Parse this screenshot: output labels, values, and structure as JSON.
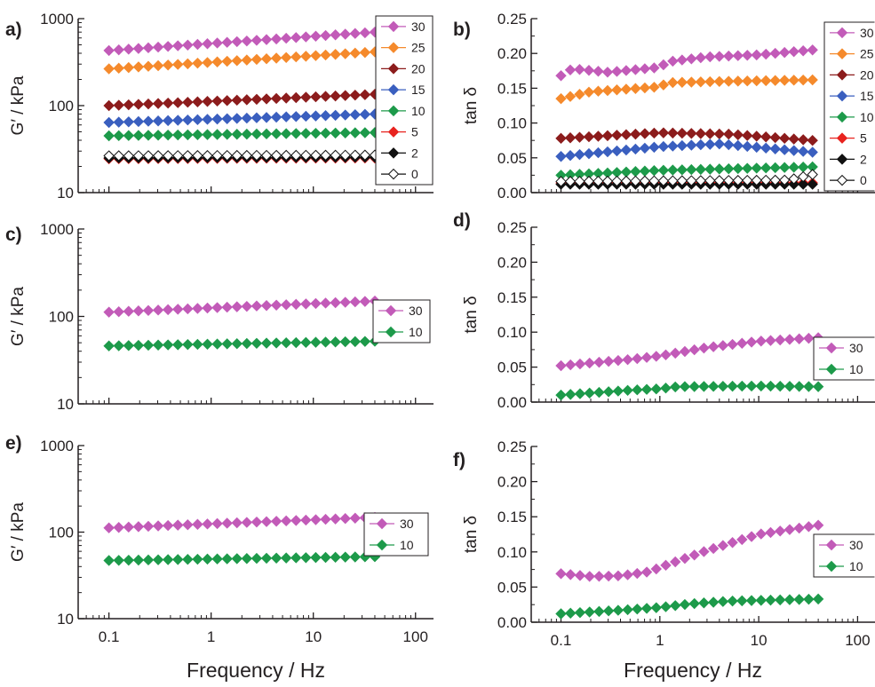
{
  "xlabel": "Frequency / Hz",
  "chart_data": [
    {
      "panel": "a)",
      "type": "scatter",
      "ylabel": "G′ / kPa",
      "yscale": "log",
      "ylim": [
        10,
        1000
      ],
      "yticks": [
        "10",
        "100",
        "1000"
      ],
      "xscale": "log",
      "xlim": [
        0.05,
        150
      ],
      "xticks": [],
      "legend_position": "right",
      "series": [
        {
          "name": "30",
          "color": "#c25bb8",
          "marker": "diamond",
          "x_range": [
            0.1,
            40
          ],
          "y_start": 430,
          "y_end": 700
        },
        {
          "name": "25",
          "color": "#f58a2c",
          "marker": "diamond",
          "x_range": [
            0.1,
            40
          ],
          "y_start": 265,
          "y_end": 415
        },
        {
          "name": "20",
          "color": "#8c1c1c",
          "marker": "diamond",
          "x_range": [
            0.1,
            40
          ],
          "y_start": 100,
          "y_end": 135
        },
        {
          "name": "15",
          "color": "#3a5fbf",
          "marker": "diamond",
          "x_range": [
            0.1,
            40
          ],
          "y_start": 64,
          "y_end": 80
        },
        {
          "name": "10",
          "color": "#1d9a4a",
          "marker": "diamond",
          "x_range": [
            0.1,
            40
          ],
          "y_start": 45,
          "y_end": 49
        },
        {
          "name": "5",
          "color": "#e8231f",
          "marker": "diamond",
          "x_range": [
            0.1,
            40
          ],
          "y_start": 24.5,
          "y_end": 25
        },
        {
          "name": "2",
          "color": "#111111",
          "marker": "diamond",
          "x_range": [
            0.1,
            40
          ],
          "y_start": 25,
          "y_end": 25.5
        },
        {
          "name": "0",
          "color": "#ffffff",
          "marker": "diamond-open",
          "x_range": [
            0.1,
            40
          ],
          "y_start": 26.5,
          "y_end": 27
        }
      ]
    },
    {
      "panel": "b)",
      "type": "scatter",
      "ylabel": "tan δ",
      "yscale": "linear",
      "ylim": [
        0,
        0.25
      ],
      "yticks": [
        "0.00",
        "0.05",
        "0.10",
        "0.15",
        "0.20",
        "0.25"
      ],
      "xscale": "log",
      "xlim": [
        0.05,
        150
      ],
      "xticks": [],
      "legend_position": "right",
      "series": [
        {
          "name": "30",
          "color": "#c25bb8",
          "marker": "diamond",
          "x_range": [
            0.1,
            35
          ],
          "points": [
            [
              0.1,
              0.168
            ],
            [
              0.13,
              0.178
            ],
            [
              0.3,
              0.173
            ],
            [
              1,
              0.18
            ],
            [
              1.2,
              0.188
            ],
            [
              3,
              0.195
            ],
            [
              10,
              0.198
            ],
            [
              35,
              0.205
            ]
          ]
        },
        {
          "name": "25",
          "color": "#f58a2c",
          "marker": "diamond",
          "x_range": [
            0.1,
            35
          ],
          "points": [
            [
              0.1,
              0.135
            ],
            [
              0.2,
              0.145
            ],
            [
              1,
              0.152
            ],
            [
              1.2,
              0.158
            ],
            [
              5,
              0.16
            ],
            [
              35,
              0.162
            ]
          ]
        },
        {
          "name": "20",
          "color": "#8c1c1c",
          "marker": "diamond",
          "x_range": [
            0.1,
            35
          ],
          "points": [
            [
              0.1,
              0.078
            ],
            [
              1,
              0.086
            ],
            [
              5,
              0.084
            ],
            [
              35,
              0.075
            ]
          ]
        },
        {
          "name": "15",
          "color": "#3a5fbf",
          "marker": "diamond",
          "x_range": [
            0.1,
            35
          ],
          "points": [
            [
              0.1,
              0.052
            ],
            [
              1,
              0.066
            ],
            [
              4,
              0.07
            ],
            [
              35,
              0.058
            ]
          ]
        },
        {
          "name": "10",
          "color": "#1d9a4a",
          "marker": "diamond",
          "x_range": [
            0.1,
            35
          ],
          "points": [
            [
              0.1,
              0.025
            ],
            [
              1,
              0.032
            ],
            [
              35,
              0.037
            ]
          ]
        },
        {
          "name": "5",
          "color": "#e8231f",
          "marker": "diamond",
          "x_range": [
            0.1,
            35
          ],
          "points": [
            [
              0.1,
              0.014
            ],
            [
              35,
              0.014
            ]
          ]
        },
        {
          "name": "2",
          "color": "#111111",
          "marker": "diamond",
          "x_range": [
            0.1,
            35
          ],
          "points": [
            [
              0.1,
              0.012
            ],
            [
              35,
              0.012
            ]
          ]
        },
        {
          "name": "0",
          "color": "#ffffff",
          "marker": "diamond-open",
          "x_range": [
            0.1,
            35
          ],
          "points": [
            [
              0.1,
              0.016
            ],
            [
              20,
              0.018
            ],
            [
              35,
              0.026
            ]
          ]
        }
      ]
    },
    {
      "panel": "c)",
      "type": "scatter",
      "ylabel": "G′ / kPa",
      "yscale": "log",
      "ylim": [
        10,
        1000
      ],
      "yticks": [
        "10",
        "100",
        "1000"
      ],
      "xscale": "log",
      "xlim": [
        0.05,
        150
      ],
      "xticks": [],
      "legend_position": "right",
      "series": [
        {
          "name": "30",
          "color": "#c25bb8",
          "marker": "diamond",
          "x_range": [
            0.1,
            40
          ],
          "y_start": 112,
          "y_end": 150
        },
        {
          "name": "10",
          "color": "#1d9a4a",
          "marker": "diamond",
          "x_range": [
            0.1,
            40
          ],
          "y_start": 46,
          "y_end": 52
        }
      ]
    },
    {
      "panel": "d)",
      "type": "scatter",
      "ylabel": "tan δ",
      "yscale": "linear",
      "ylim": [
        0,
        0.25
      ],
      "yticks": [
        "0.00",
        "0.05",
        "0.10",
        "0.15",
        "0.20",
        "0.25"
      ],
      "xscale": "log",
      "xlim": [
        0.05,
        150
      ],
      "xticks": [],
      "legend_position": "right",
      "series": [
        {
          "name": "30",
          "color": "#c25bb8",
          "marker": "diamond",
          "x_range": [
            0.1,
            40
          ],
          "points": [
            [
              0.1,
              0.052
            ],
            [
              0.5,
              0.061
            ],
            [
              1,
              0.066
            ],
            [
              3,
              0.078
            ],
            [
              10,
              0.087
            ],
            [
              40,
              0.092
            ]
          ]
        },
        {
          "name": "10",
          "color": "#1d9a4a",
          "marker": "diamond",
          "x_range": [
            0.1,
            40
          ],
          "points": [
            [
              0.1,
              0.01
            ],
            [
              0.5,
              0.017
            ],
            [
              1,
              0.019
            ],
            [
              1.5,
              0.022
            ],
            [
              10,
              0.023
            ],
            [
              40,
              0.022
            ]
          ]
        }
      ]
    },
    {
      "panel": "e)",
      "type": "scatter",
      "ylabel": "G′ / kPa",
      "yscale": "log",
      "ylim": [
        10,
        1000
      ],
      "yticks": [
        "10",
        "100",
        "1000"
      ],
      "xscale": "log",
      "xlim": [
        0.05,
        150
      ],
      "xticks": [
        "0.1",
        "1",
        "10",
        "100"
      ],
      "legend_position": "right",
      "series": [
        {
          "name": "30",
          "color": "#c25bb8",
          "marker": "diamond",
          "x_range": [
            0.1,
            40
          ],
          "y_start": 112,
          "y_end": 148
        },
        {
          "name": "10",
          "color": "#1d9a4a",
          "marker": "diamond",
          "x_range": [
            0.1,
            40
          ],
          "y_start": 47,
          "y_end": 52
        }
      ]
    },
    {
      "panel": "f)",
      "type": "scatter",
      "ylabel": "tan δ",
      "yscale": "linear",
      "ylim": [
        0,
        0.25
      ],
      "yticks": [
        "0.00",
        "0.05",
        "0.10",
        "0.15",
        "0.20",
        "0.25"
      ],
      "xscale": "log",
      "xlim": [
        0.05,
        150
      ],
      "xticks": [
        "0.1",
        "1",
        "10",
        "100"
      ],
      "legend_position": "right",
      "series": [
        {
          "name": "30",
          "color": "#c25bb8",
          "marker": "diamond",
          "x_range": [
            0.1,
            40
          ],
          "points": [
            [
              0.1,
              0.069
            ],
            [
              0.2,
              0.065
            ],
            [
              0.4,
              0.066
            ],
            [
              0.8,
              0.072
            ],
            [
              1,
              0.078
            ],
            [
              3,
              0.102
            ],
            [
              10,
              0.125
            ],
            [
              40,
              0.138
            ]
          ]
        },
        {
          "name": "10",
          "color": "#1d9a4a",
          "marker": "diamond",
          "x_range": [
            0.1,
            40
          ],
          "points": [
            [
              0.1,
              0.012
            ],
            [
              0.5,
              0.018
            ],
            [
              1,
              0.021
            ],
            [
              2,
              0.026
            ],
            [
              5,
              0.03
            ],
            [
              40,
              0.033
            ]
          ]
        }
      ]
    }
  ]
}
